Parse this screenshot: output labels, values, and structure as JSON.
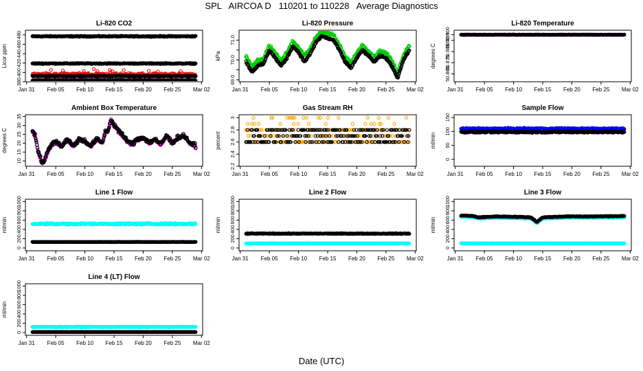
{
  "page": {
    "title": "SPL   AIRCOA D   110201 to 110228   Average Diagnostics",
    "xlabel": "Date (UTC)"
  },
  "colors": {
    "black": "#000000",
    "red": "#ff0000",
    "green": "#00cc00",
    "magenta": "#ff00ff",
    "orange": "#ffa500",
    "blue": "#0000ff",
    "cyan": "#00ffff"
  },
  "x_axis": {
    "ticks": [
      31,
      36,
      41,
      46,
      51,
      56,
      61
    ],
    "tick_labels": [
      "Jan 31",
      "Feb 05",
      "Feb 10",
      "Feb 15",
      "Feb 20",
      "Feb 25",
      "Mar 02"
    ],
    "range": [
      30.8,
      61.2
    ],
    "data_range": [
      32,
      60
    ]
  },
  "chart_data": [
    {
      "id": "co2",
      "type": "scatter",
      "title": "Li-820 CO2",
      "ylabel": "Licor ppm",
      "ylim": [
        380,
        490
      ],
      "yticks": [
        380,
        400,
        420,
        440,
        460,
        480
      ],
      "series": [
        {
          "name": "cal-high",
          "color": "#000000",
          "kind": "flat",
          "level": 477,
          "noise": 1.5
        },
        {
          "name": "cal-mid",
          "color": "#000000",
          "kind": "flat",
          "level": 419,
          "noise": 1.5
        },
        {
          "name": "sample-red",
          "color": "#ff0000",
          "kind": "band",
          "level": 395,
          "noise": 5
        },
        {
          "name": "cal-low",
          "color": "#000000",
          "kind": "flat",
          "level": 392,
          "noise": 1.5
        },
        {
          "name": "ref",
          "color": "#000000",
          "kind": "flat",
          "level": 383,
          "noise": 1
        }
      ]
    },
    {
      "id": "pressure",
      "type": "scatter",
      "title": "Li-820 Pressure",
      "ylabel": "kPa",
      "ylim": [
        68.9,
        71.5
      ],
      "yticks": [
        69.0,
        69.5,
        70.0,
        70.5,
        71.0
      ],
      "ytick_labels": [
        "69.0",
        "",
        "70.0",
        "",
        "71.0"
      ],
      "profile": [
        [
          32,
          70.0
        ],
        [
          33,
          69.5
        ],
        [
          34,
          69.8
        ],
        [
          35,
          69.9
        ],
        [
          36,
          70.6
        ],
        [
          37,
          70.2
        ],
        [
          38,
          69.8
        ],
        [
          39,
          70.2
        ],
        [
          40,
          70.8
        ],
        [
          41,
          70.5
        ],
        [
          42,
          70.0
        ],
        [
          43,
          70.4
        ],
        [
          44,
          71.0
        ],
        [
          45,
          71.3
        ],
        [
          46,
          71.2
        ],
        [
          47,
          71.1
        ],
        [
          48,
          70.6
        ],
        [
          49,
          70.0
        ],
        [
          50,
          69.7
        ],
        [
          51,
          70.2
        ],
        [
          52,
          70.6
        ],
        [
          53,
          70.3
        ],
        [
          54,
          70.0
        ],
        [
          55,
          70.3
        ],
        [
          56,
          70.2
        ],
        [
          57,
          69.8
        ],
        [
          58,
          69.2
        ],
        [
          59,
          70.1
        ],
        [
          60,
          70.6
        ]
      ],
      "series": [
        {
          "name": "pressure-green",
          "color": "#00cc00",
          "kind": "profile",
          "offset": 0.15,
          "noise": 0.12
        },
        {
          "name": "pressure-black",
          "color": "#000000",
          "kind": "profile",
          "offset": -0.1,
          "noise": 0.08
        }
      ]
    },
    {
      "id": "temperature",
      "type": "scatter",
      "title": "Li-820 Temperature",
      "ylabel": "degrees C",
      "ylim": [
        50.858,
        50.904
      ],
      "yticks": [
        50.865,
        50.875,
        50.885,
        50.895,
        50.9
      ],
      "ytick_labels": [
        "50.865",
        "50.875",
        "50.885",
        "50.895",
        "50.900"
      ],
      "series": [
        {
          "name": "temp-magenta",
          "color": "#ff00ff",
          "kind": "flat",
          "level": 50.9,
          "noise": 0.0002
        },
        {
          "name": "temp-black",
          "color": "#000000",
          "kind": "flat",
          "level": 50.9,
          "noise": 0.0002
        }
      ]
    },
    {
      "id": "ambient",
      "type": "scatter",
      "title": "Ambient Box Temperature",
      "ylabel": "degrees C",
      "ylim": [
        7,
        36
      ],
      "yticks": [
        10,
        15,
        20,
        25,
        30,
        35
      ],
      "profile": [
        [
          32,
          27
        ],
        [
          32.5,
          24
        ],
        [
          33,
          15
        ],
        [
          33.5,
          10
        ],
        [
          34,
          9
        ],
        [
          34.5,
          14
        ],
        [
          35,
          18
        ],
        [
          36,
          21
        ],
        [
          37,
          18
        ],
        [
          38,
          22
        ],
        [
          39,
          18
        ],
        [
          40,
          22
        ],
        [
          41,
          21
        ],
        [
          42,
          18
        ],
        [
          43,
          22
        ],
        [
          44,
          20
        ],
        [
          44.5,
          26
        ],
        [
          45,
          27
        ],
        [
          45.5,
          33
        ],
        [
          46,
          30
        ],
        [
          47,
          26
        ],
        [
          48,
          22
        ],
        [
          49,
          19
        ],
        [
          50,
          22
        ],
        [
          51,
          23
        ],
        [
          52,
          20
        ],
        [
          53,
          22
        ],
        [
          54,
          19
        ],
        [
          55,
          24
        ],
        [
          56,
          20
        ],
        [
          57,
          23
        ],
        [
          58,
          24
        ],
        [
          59,
          20
        ],
        [
          60,
          18
        ]
      ],
      "series": [
        {
          "name": "ambient-magenta",
          "color": "#ff00ff",
          "kind": "profile",
          "offset": 0,
          "noise": 1.0
        },
        {
          "name": "ambient-black",
          "color": "#000000",
          "kind": "profile",
          "offset": 0.3,
          "noise": 1.8
        }
      ]
    },
    {
      "id": "rh",
      "type": "scatter",
      "title": "Gas Stream RH",
      "ylabel": "percent",
      "ylim": [
        2.2,
        3.05
      ],
      "yticks": [
        2.2,
        2.4,
        2.6,
        2.8,
        3.0
      ],
      "series": [
        {
          "name": "rh-orange",
          "color": "#ffa500",
          "kind": "levels",
          "levels": [
            2.6,
            2.7,
            2.8,
            2.9,
            3.0
          ],
          "weights": [
            0.35,
            0.2,
            0.3,
            0.1,
            0.05
          ]
        },
        {
          "name": "rh-black",
          "color": "#000000",
          "kind": "levels",
          "levels": [
            2.6,
            2.7,
            2.8
          ],
          "weights": [
            0.35,
            0.3,
            0.35
          ]
        }
      ]
    },
    {
      "id": "sample-flow",
      "type": "scatter",
      "title": "Sample Flow",
      "ylabel": "ml/min",
      "ylim": [
        -25,
        160
      ],
      "yticks": [
        0,
        50,
        100,
        150
      ],
      "series": [
        {
          "name": "sample-blue",
          "color": "#0000ff",
          "kind": "flat",
          "level": 110,
          "noise": 4
        },
        {
          "name": "sample-black",
          "color": "#000000",
          "kind": "flat",
          "level": 98,
          "noise": 4
        }
      ]
    },
    {
      "id": "line1",
      "type": "scatter",
      "title": "Line 1 Flow",
      "ylabel": "ml/min",
      "ylim": [
        -60,
        1050
      ],
      "yticks": [
        0,
        200,
        400,
        600,
        800,
        1000
      ],
      "series": [
        {
          "name": "line1-cyan",
          "color": "#00ffff",
          "kind": "flat",
          "level": 520,
          "noise": 25
        },
        {
          "name": "line1-black",
          "color": "#000000",
          "kind": "flat",
          "level": 130,
          "noise": 6
        }
      ]
    },
    {
      "id": "line2",
      "type": "scatter",
      "title": "Line 2 Flow",
      "ylabel": "ml/min",
      "ylim": [
        -60,
        1050
      ],
      "yticks": [
        0,
        200,
        400,
        600,
        800,
        1000
      ],
      "series": [
        {
          "name": "line2-cyan",
          "color": "#00ffff",
          "kind": "flat",
          "level": 100,
          "noise": 8
        },
        {
          "name": "line2-black",
          "color": "#000000",
          "kind": "flat",
          "level": 310,
          "noise": 12
        }
      ]
    },
    {
      "id": "line3",
      "type": "scatter",
      "title": "Line 3 Flow",
      "ylabel": "ml/min",
      "ylim": [
        -60,
        1050
      ],
      "yticks": [
        0,
        200,
        400,
        600,
        800,
        1000
      ],
      "profile": [
        [
          32,
          700
        ],
        [
          34,
          690
        ],
        [
          35,
          660
        ],
        [
          38,
          680
        ],
        [
          42,
          670
        ],
        [
          44,
          660
        ],
        [
          45,
          560
        ],
        [
          46,
          660
        ],
        [
          50,
          680
        ],
        [
          55,
          680
        ],
        [
          60,
          690
        ]
      ],
      "series": [
        {
          "name": "line3-cyan",
          "color": "#00ffff",
          "kind": "flat",
          "level": 100,
          "noise": 8
        },
        {
          "name": "line3-cyan-upper",
          "color": "#00ffff",
          "kind": "profile",
          "offset": -25,
          "noise": 10
        },
        {
          "name": "line3-black",
          "color": "#000000",
          "kind": "profile",
          "offset": 0,
          "noise": 12
        }
      ]
    },
    {
      "id": "line4",
      "type": "scatter",
      "title": "Line 4 (LT) Flow",
      "ylabel": "ml/min",
      "ylim": [
        -60,
        1050
      ],
      "yticks": [
        0,
        200,
        400,
        600,
        800,
        1000
      ],
      "series": [
        {
          "name": "line4-cyan",
          "color": "#00ffff",
          "kind": "flat",
          "level": 120,
          "noise": 10
        },
        {
          "name": "line4-black",
          "color": "#000000",
          "kind": "flat",
          "level": 10,
          "noise": 4
        }
      ]
    }
  ]
}
